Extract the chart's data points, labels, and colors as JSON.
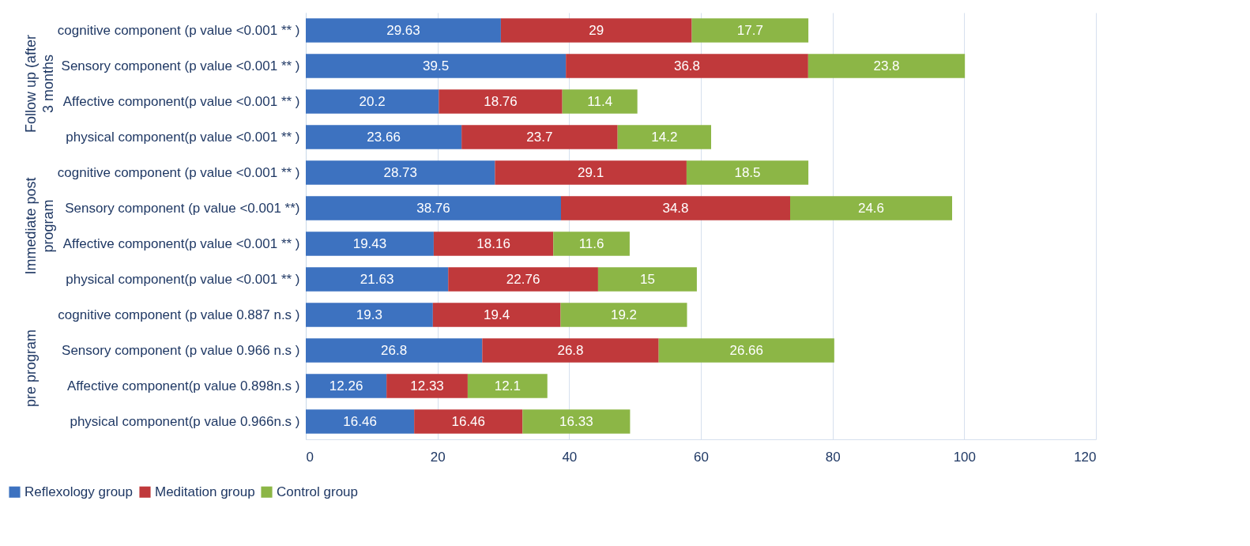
{
  "chart_data": {
    "type": "bar",
    "orientation": "horizontal",
    "stacked": true,
    "data_labels": true,
    "grid": "x",
    "legend": "bottom",
    "categories": [
      "cognitive component (p value <0.001 ** )",
      "Sensory component (p value <0.001 ** )",
      "Affective component(p value <0.001 ** )",
      "physical component(p value  <0.001 ** )",
      "cognitive component (p value <0.001 ** )",
      "Sensory component (p value <0.001 **)",
      "Affective component(p value <0.001 ** )",
      "physical component(p value  <0.001 ** )",
      "cognitive component (p value 0.887 n.s )",
      "Sensory component (p value 0.966 n.s )",
      "Affective component(p value 0.898n.s )",
      "physical component(p value  0.966n.s )"
    ],
    "series": [
      {
        "name": "Reflexology group",
        "color": "#3d72c0",
        "values": [
          29.63,
          39.5,
          20.2,
          23.66,
          28.73,
          38.76,
          19.43,
          21.63,
          19.3,
          26.8,
          12.26,
          16.46
        ]
      },
      {
        "name": "Meditation group",
        "color": "#c0393b",
        "values": [
          29,
          36.8,
          18.76,
          23.7,
          29.1,
          34.8,
          18.16,
          22.76,
          19.4,
          26.8,
          12.33,
          16.46
        ]
      },
      {
        "name": "Control group",
        "color": "#8cb646",
        "values": [
          17.7,
          23.8,
          11.4,
          14.2,
          18.5,
          24.6,
          11.6,
          15,
          19.2,
          26.66,
          12.1,
          16.33
        ]
      }
    ],
    "annotations": [
      "Follow up (after 3 months",
      "Immediate post program",
      "pre program"
    ],
    "xlim": [
      0,
      120
    ],
    "xticks": [
      0,
      20,
      40,
      60,
      80,
      100,
      120
    ]
  }
}
